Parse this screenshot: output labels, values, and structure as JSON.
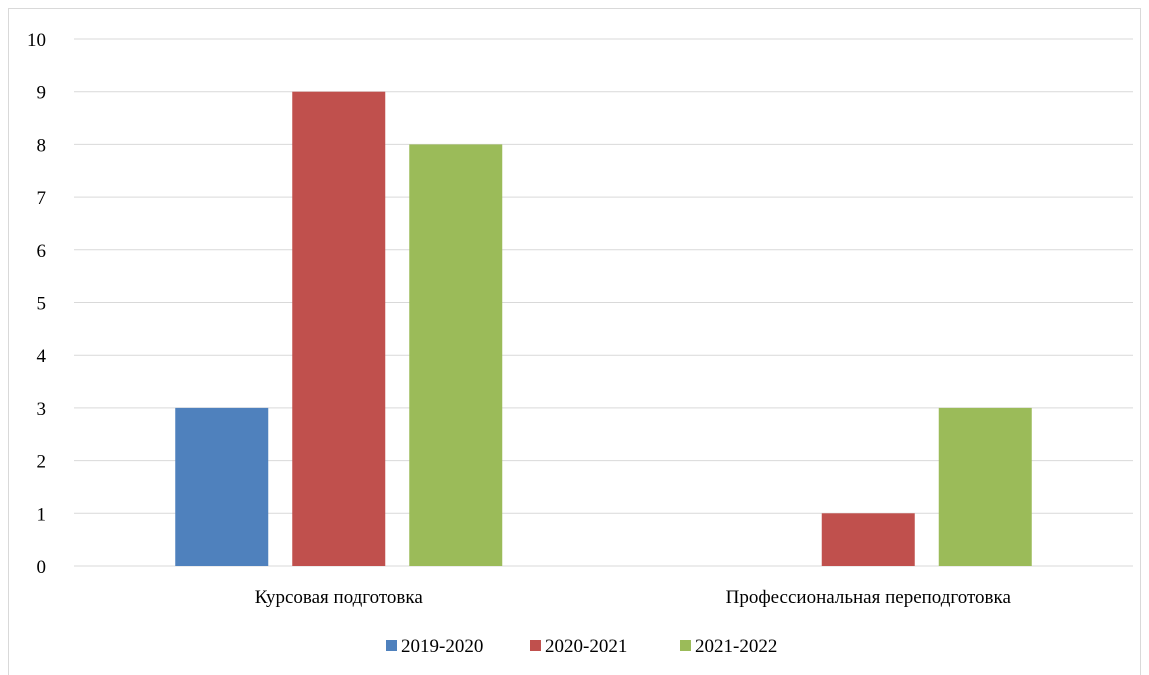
{
  "chart_data": {
    "type": "bar",
    "categories": [
      "Курсовая подготовка",
      "Профессиональная переподготовка"
    ],
    "series": [
      {
        "name": "2019-2020",
        "values": [
          3,
          0
        ],
        "color": "#4f81bd"
      },
      {
        "name": "2020-2021",
        "values": [
          9,
          1
        ],
        "color": "#c0504d"
      },
      {
        "name": "2021-2022",
        "values": [
          8,
          3
        ],
        "color": "#9bbb59"
      }
    ],
    "ylim": [
      0,
      10
    ],
    "yticks": [
      "0",
      "1",
      "2",
      "3",
      "4",
      "5",
      "6",
      "7",
      "8",
      "9",
      "10"
    ],
    "grid": true,
    "legend_position": "bottom"
  }
}
